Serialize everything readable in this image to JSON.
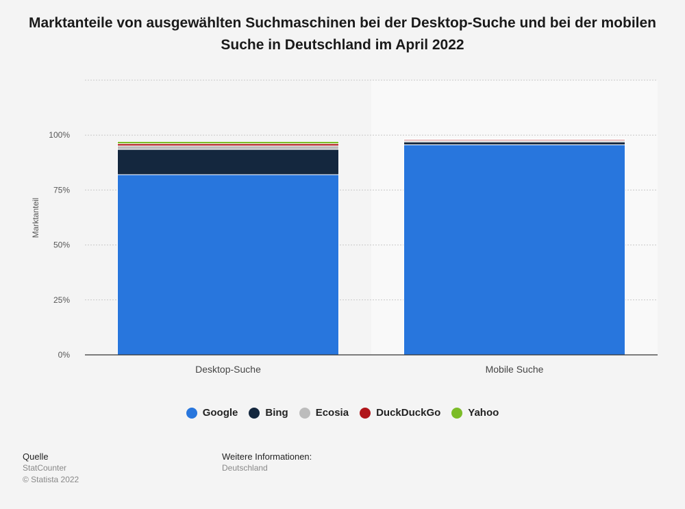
{
  "title": "Marktanteile von ausgewählten Suchmaschinen bei der Desktop-Suche und bei der mobilen Suche in Deutschland im April 2022",
  "colors": {
    "Google": "#2876dd",
    "Bing": "#14273e",
    "Ecosia": "#bcbcbc",
    "DuckDuckGo": "#b0151a",
    "Yahoo": "#7cbc28"
  },
  "chart_data": {
    "type": "bar",
    "stacked": true,
    "categories": [
      "Desktop-Suche",
      "Mobile Suche"
    ],
    "series": [
      {
        "name": "Google",
        "values": [
          82.0,
          95.6
        ]
      },
      {
        "name": "Bing",
        "values": [
          11.5,
          1.3
        ]
      },
      {
        "name": "Ecosia",
        "values": [
          1.6,
          0.5
        ]
      },
      {
        "name": "DuckDuckGo",
        "values": [
          1.0,
          0.5
        ]
      },
      {
        "name": "Yahoo",
        "values": [
          1.0,
          0.3
        ]
      }
    ],
    "ylabel": "Marktanteil",
    "ylim": [
      0,
      125
    ],
    "yticks": [
      0,
      25,
      50,
      75,
      100
    ],
    "ytick_labels": [
      "0%",
      "25%",
      "50%",
      "75%",
      "100%"
    ],
    "grid": true,
    "legend_position": "bottom"
  },
  "footer": {
    "source_label": "Quelle",
    "source_lines": [
      "StatCounter",
      "© Statista 2022"
    ],
    "info_label": "Weitere Informationen:",
    "info_lines": [
      "Deutschland"
    ]
  }
}
